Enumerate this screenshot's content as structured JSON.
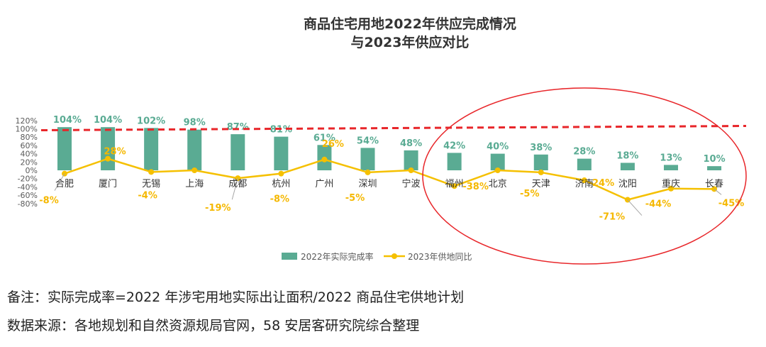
{
  "chart_data": {
    "type": "bar+line",
    "title_line1": "商品住宅用地2022年供应完成情况",
    "title_line2": "与2023年供应对比",
    "categories": [
      "合肥",
      "厦门",
      "无锡",
      "上海",
      "成都",
      "杭州",
      "广州",
      "深圳",
      "宁波",
      "福州",
      "北京",
      "天津",
      "济南",
      "沈阳",
      "重庆",
      "长春"
    ],
    "series": [
      {
        "name": "2022年实际完成率",
        "type": "bar",
        "color": "#5aab93",
        "values": [
          104,
          104,
          102,
          98,
          87,
          81,
          61,
          54,
          48,
          42,
          40,
          38,
          28,
          18,
          13,
          10
        ],
        "labels": [
          "104%",
          "104%",
          "102%",
          "98%",
          "87%",
          "81%",
          "61%",
          "54%",
          "48%",
          "42%",
          "40%",
          "38%",
          "28%",
          "18%",
          "13%",
          "10%"
        ]
      },
      {
        "name": "2023年供地同比",
        "type": "line",
        "color": "#f5c000",
        "values": [
          -8,
          28,
          -4,
          0,
          -19,
          -8,
          26,
          -5,
          0,
          -38,
          0,
          -5,
          -24,
          -71,
          -44,
          -45
        ],
        "labels": [
          "-8%",
          "28%",
          "-4%",
          "",
          "-19%",
          "-8%",
          "26%",
          "-5%",
          "",
          "-38%",
          "",
          "-5%",
          "-24%",
          "-71%",
          "-44%",
          "-45%"
        ]
      }
    ],
    "y_ticks": [
      "120%",
      "100%",
      "80%",
      "60%",
      "40%",
      "20%",
      "0%",
      "-20%",
      "-40%",
      "-60%",
      "-80%"
    ],
    "ylim": [
      -80,
      120
    ],
    "reference_line": {
      "value": 100,
      "color": "#e8262a",
      "style": "dashed"
    },
    "highlight_ellipse_color": "#e8262a",
    "legend": "bottom"
  },
  "notes": {
    "remark": "备注：实际完成率=2022 年涉宅用地实际出让面积/2022 商品住宅供地计划",
    "source": "数据来源：各地规划和自然资源规局官网，58 安居客研究院综合整理"
  }
}
